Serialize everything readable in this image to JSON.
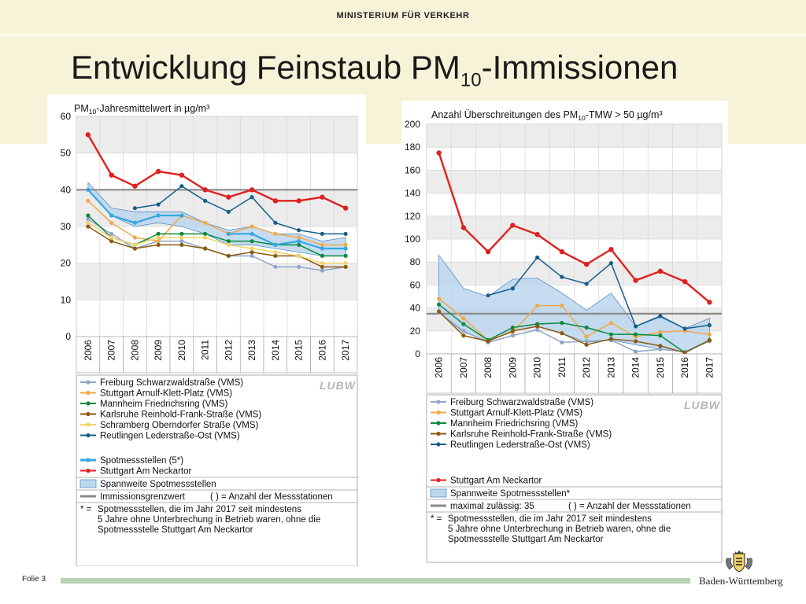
{
  "header": {
    "ministry": "MINISTERIUM FÜR VERKEHR",
    "title_main": "Entwicklung Feinstaub PM",
    "title_sub": "10",
    "title_rest": "-Immissionen"
  },
  "footer": {
    "slide_label": "Folie 3",
    "state_name": "Baden-Württemberg"
  },
  "colors": {
    "Freiburg": "#8fa6c9",
    "Stuttgart Arnulf": "#f0a94a",
    "Mannheim": "#0a8a3c",
    "Karlsruhe": "#8a5a12",
    "Schramberg": "#f2d36b",
    "Reutlingen": "#155f89",
    "Spotmessstellen": "#34a8e0",
    "Neckartor": "#e0201e",
    "Spannweite fill": "#bcd6ee",
    "Spannweite line": "#5a8fc5",
    "Grenzwert": "#8a8a8a"
  },
  "chart_data": [
    {
      "type": "line",
      "title_pre": "PM",
      "title_sub": "10",
      "title_post": "-Jahresmittelwert in µg/m³",
      "x": [
        "2006",
        "2007",
        "2008",
        "2009",
        "2010",
        "2011",
        "2012",
        "2013",
        "2014",
        "2015",
        "2016",
        "2017"
      ],
      "ylim": [
        0,
        60
      ],
      "yticks": [
        0,
        10,
        20,
        30,
        40,
        50,
        60
      ],
      "grid": true,
      "limit_value": 40,
      "band": {
        "name": "Spannweite Spotmessstellen",
        "lower": [
          40,
          33,
          30,
          31,
          30,
          28,
          25,
          25,
          24,
          23,
          22,
          22
        ],
        "upper": [
          42,
          35,
          34,
          34,
          34,
          31,
          29,
          30,
          28,
          28,
          26,
          27
        ]
      },
      "series": [
        {
          "name": "Freiburg Schwarzwaldstraße (VMS)",
          "color_key": "Freiburg",
          "values": [
            32,
            28,
            24,
            26,
            26,
            24,
            22,
            22,
            19,
            19,
            18,
            19
          ]
        },
        {
          "name": "Stuttgart Arnulf-Klett-Platz (VMS)",
          "color_key": "Stuttgart Arnulf",
          "values": [
            37,
            31,
            27,
            26,
            33,
            31,
            28,
            30,
            28,
            27,
            25,
            25
          ]
        },
        {
          "name": "Mannheim Friedrichsring (VMS)",
          "color_key": "Mannheim",
          "values": [
            33,
            27,
            25,
            28,
            28,
            28,
            26,
            26,
            25,
            25,
            22,
            22
          ]
        },
        {
          "name": "Karlsruhe Reinhold-Frank-Straße (VMS)",
          "color_key": "Karlsruhe",
          "values": [
            30,
            26,
            24,
            25,
            25,
            24,
            22,
            23,
            22,
            22,
            19,
            19
          ]
        },
        {
          "name": "Schramberg Oberndorfer Straße (VMS)",
          "color_key": "Schramberg",
          "values": [
            31,
            27,
            25,
            27,
            27,
            27,
            25,
            24,
            23,
            22,
            20,
            20
          ]
        },
        {
          "name": "Reutlingen Lederstraße-Ost (VMS)",
          "color_key": "Reutlingen",
          "values": [
            null,
            null,
            35,
            36,
            41,
            37,
            34,
            38,
            31,
            29,
            28,
            28
          ]
        },
        {
          "name": "Spotmessstellen (5*)",
          "color_key": "Spotmessstellen",
          "values": [
            40,
            33,
            31,
            33,
            33,
            null,
            28,
            28,
            25,
            26,
            24,
            24
          ]
        },
        {
          "name": "Stuttgart Am Neckartor",
          "color_key": "Neckartor",
          "values": [
            55,
            44,
            41,
            45,
            44,
            40,
            38,
            40,
            37,
            37,
            38,
            35
          ]
        }
      ],
      "legend": {
        "entries": [
          "Freiburg Schwarzwaldstraße (VMS)",
          "Stuttgart Arnulf-Klett-Platz (VMS)",
          "Mannheim Friedrichsring (VMS)",
          "Karlsruhe Reinhold-Frank-Straße (VMS)",
          "Schramberg Oberndorfer Straße (VMS)",
          "Reutlingen Lederstraße-Ost (VMS)",
          "Spotmessstellen (5*)",
          "Stuttgart Am Neckartor"
        ],
        "band_label": "Spannweite Spotmessstellen",
        "limit_label": "Immissionsgrenzwert",
        "limit_note": "( ) =  Anzahl der Messstationen",
        "footnote_mark": "* =",
        "footnote_lines": [
          "Spotmessstellen, die im Jahr 2017 seit mindestens",
          "5 Jahre ohne Unterbrechung in Betrieb waren, ohne die",
          "Spotmessstelle Stuttgart Am Neckartor"
        ],
        "logo": "LUBW"
      }
    },
    {
      "type": "line",
      "title_pre": "Anzahl Überschreitungen des PM",
      "title_sub": "10",
      "title_post": "-TMW > 50 µg/m³",
      "x": [
        "2006",
        "2007",
        "2008",
        "2009",
        "2010",
        "2011",
        "2012",
        "2013",
        "2014",
        "2015",
        "2016",
        "2017"
      ],
      "ylim": [
        0,
        200
      ],
      "yticks": [
        0,
        20,
        40,
        60,
        80,
        100,
        120,
        140,
        160,
        180,
        200
      ],
      "grid": true,
      "limit_value": 35,
      "band": {
        "name": "Spannweite Spotmessstellen*",
        "lower": [
          36,
          19,
          11,
          20,
          24,
          18,
          10,
          12,
          8,
          4,
          2,
          12
        ],
        "upper": [
          86,
          57,
          50,
          65,
          66,
          53,
          38,
          53,
          24,
          32,
          22,
          31
        ]
      },
      "series": [
        {
          "name": "Freiburg Schwarzwaldstraße (VMS)",
          "color_key": "Freiburg",
          "values": [
            36,
            20,
            10,
            16,
            21,
            10,
            11,
            12,
            2,
            4,
            2,
            11
          ]
        },
        {
          "name": "Stuttgart Arnulf-Klett-Platz (VMS)",
          "color_key": "Stuttgart Arnulf",
          "values": [
            48,
            31,
            12,
            19,
            42,
            42,
            15,
            27,
            15,
            19,
            20,
            17
          ]
        },
        {
          "name": "Mannheim Friedrichsring (VMS)",
          "color_key": "Mannheim",
          "values": [
            43,
            26,
            12,
            23,
            26,
            27,
            23,
            17,
            17,
            16,
            1,
            12
          ]
        },
        {
          "name": "Karlsruhe Reinhold-Frank-Straße (VMS)",
          "color_key": "Karlsruhe",
          "values": [
            37,
            16,
            11,
            20,
            24,
            18,
            8,
            13,
            11,
            7,
            1,
            12
          ]
        },
        {
          "name": "Reutlingen Lederstraße-Ost (VMS)",
          "color_key": "Reutlingen",
          "values": [
            null,
            null,
            51,
            57,
            84,
            67,
            61,
            79,
            24,
            33,
            22,
            25
          ]
        },
        {
          "name": "Stuttgart Am Neckartor",
          "color_key": "Neckartor",
          "values": [
            175,
            110,
            89,
            112,
            104,
            89,
            78,
            91,
            64,
            72,
            63,
            45
          ]
        }
      ],
      "legend": {
        "entries": [
          "Freiburg Schwarzwaldstraße (VMS)",
          "Stuttgart Arnulf-Klett-Platz (VMS)",
          "Mannheim Friedrichsring (VMS)",
          "Karlsruhe Reinhold-Frank-Straße (VMS)",
          "Reutlingen Lederstraße-Ost (VMS)",
          "Stuttgart Am Neckartor"
        ],
        "band_label": "Spannweite Spotmessstellen*",
        "limit_label": "maximal zulässig: 35",
        "limit_note": "( ) =  Anzahl der Messstationen",
        "footnote_mark": "* =",
        "footnote_lines": [
          "Spotmessstellen, die im Jahr 2017 seit mindestens",
          "5 Jahre ohne Unterbrechung in Betrieb waren, ohne die",
          "Spotmessstelle Stuttgart Am Neckartor"
        ],
        "logo": "LUBW"
      }
    }
  ]
}
